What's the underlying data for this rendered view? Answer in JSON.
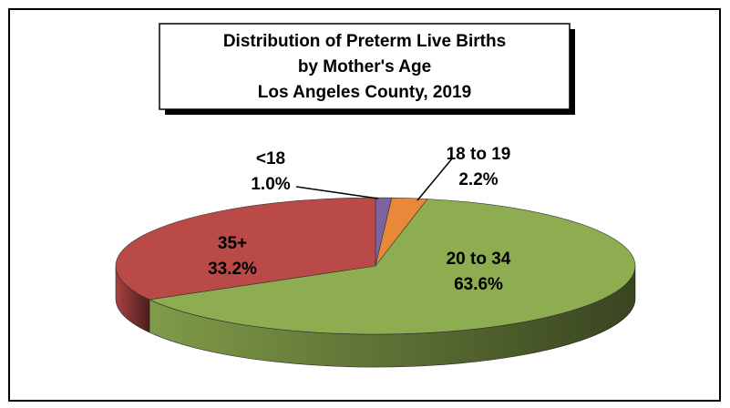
{
  "chart_data": {
    "type": "pie3d",
    "title": [
      "Distribution of Preterm Live Births",
      "by Mother's Age",
      "Los Angeles County, 2019"
    ],
    "categories": [
      "<18",
      "18 to 19",
      "20 to 34",
      "35+"
    ],
    "values": [
      1.0,
      2.2,
      63.6,
      33.2
    ],
    "value_labels": [
      "1.0%",
      "2.2%",
      "63.6%",
      "33.2%"
    ],
    "colors": [
      "#7f62a0",
      "#e8893a",
      "#8eac50",
      "#b94a48"
    ]
  }
}
